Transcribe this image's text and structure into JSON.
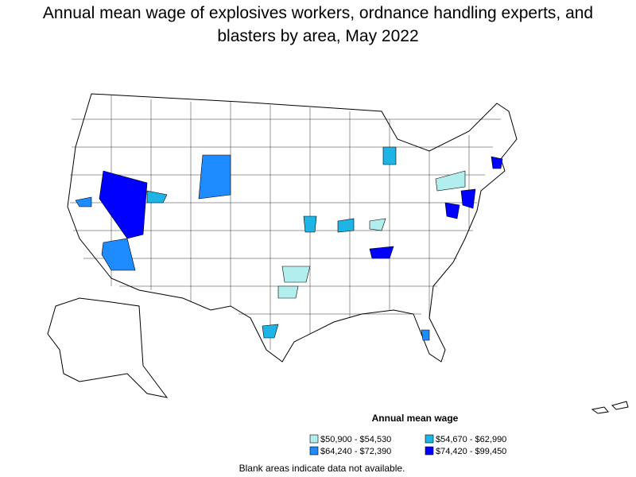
{
  "title": "Annual mean wage of explosives workers, ordnance handling experts, and blasters by area, May 2022",
  "legend": {
    "title": "Annual mean wage",
    "items": [
      {
        "label": "$50,900 - $54,530",
        "color": "#b2eeee"
      },
      {
        "label": "$54,670 - $62,990",
        "color": "#1eb4e6"
      },
      {
        "label": "$64,240 - $72,390",
        "color": "#1e8cff"
      },
      {
        "label": "$74,420 - $99,450",
        "color": "#0000ff"
      }
    ]
  },
  "note": "Blank areas indicate data not available."
}
